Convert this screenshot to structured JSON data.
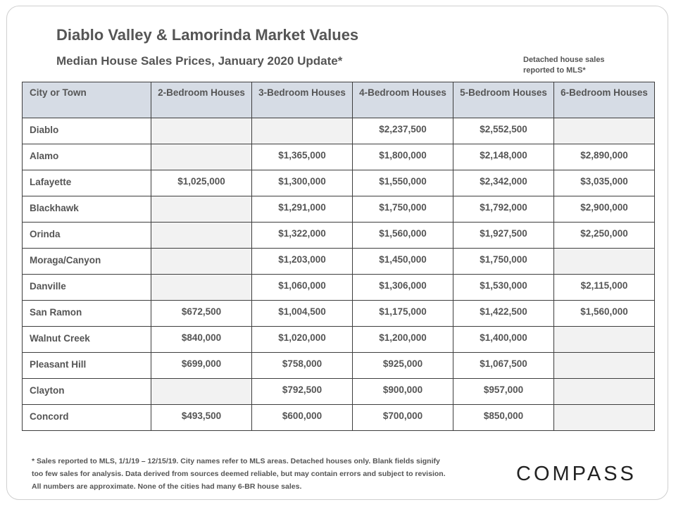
{
  "header": {
    "title": "Diablo Valley & Lamorinda Market Values",
    "subtitle": "Median House Sales Prices, January 2020 Update*",
    "side_note": "Detached house sales reported to MLS*"
  },
  "table": {
    "columns": [
      "City or Town",
      "2-Bedroom Houses",
      "3-Bedroom Houses",
      "4-Bedroom Houses",
      "5-Bedroom Houses",
      "6-Bedroom Houses"
    ],
    "rows": [
      {
        "city": "Diablo",
        "values": [
          "",
          "",
          "$2,237,500",
          "$2,552,500",
          ""
        ]
      },
      {
        "city": "Alamo",
        "values": [
          "",
          "$1,365,000",
          "$1,800,000",
          "$2,148,000",
          "$2,890,000"
        ]
      },
      {
        "city": "Lafayette",
        "values": [
          "$1,025,000",
          "$1,300,000",
          "$1,550,000",
          "$2,342,000",
          "$3,035,000"
        ]
      },
      {
        "city": "Blackhawk",
        "values": [
          "",
          "$1,291,000",
          "$1,750,000",
          "$1,792,000",
          "$2,900,000"
        ]
      },
      {
        "city": "Orinda",
        "values": [
          "",
          "$1,322,000",
          "$1,560,000",
          "$1,927,500",
          "$2,250,000"
        ]
      },
      {
        "city": "Moraga/Canyon",
        "values": [
          "",
          "$1,203,000",
          "$1,450,000",
          "$1,750,000",
          ""
        ]
      },
      {
        "city": "Danville",
        "values": [
          "",
          "$1,060,000",
          "$1,306,000",
          "$1,530,000",
          "$2,115,000"
        ]
      },
      {
        "city": "San Ramon",
        "values": [
          "$672,500",
          "$1,004,500",
          "$1,175,000",
          "$1,422,500",
          "$1,560,000"
        ]
      },
      {
        "city": "Walnut  Creek",
        "values": [
          "$840,000",
          "$1,020,000",
          "$1,200,000",
          "$1,400,000",
          ""
        ]
      },
      {
        "city": "Pleasant Hill",
        "values": [
          "$699,000",
          "$758,000",
          "$925,000",
          "$1,067,500",
          ""
        ]
      },
      {
        "city": "Clayton",
        "values": [
          "",
          "$792,500",
          "$900,000",
          "$957,000",
          ""
        ]
      },
      {
        "city": "Concord",
        "values": [
          "$493,500",
          "$600,000",
          "$700,000",
          "$850,000",
          ""
        ]
      }
    ]
  },
  "footnote": {
    "line1": "* Sales reported to MLS, 1/1/19 – 12/15/19. City names refer to MLS areas. Detached houses only. Blank fields signify",
    "line2": "too few sales for analysis. Data derived from sources deemed reliable, but may contain errors and subject to revision.",
    "line3": "All numbers are approximate.  None of the cities had many 6-BR house sales."
  },
  "brand": {
    "logo_text": "COMPASS"
  },
  "colors": {
    "header_fill": "#d6dce5",
    "blank_fill": "#f2f2f2",
    "text": "#555555"
  }
}
